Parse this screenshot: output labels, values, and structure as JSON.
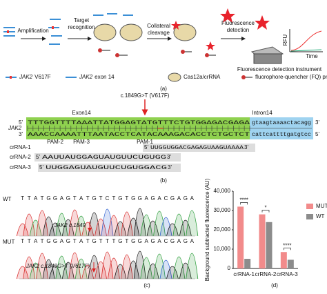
{
  "panel_a": {
    "steps": [
      [
        "Amplification"
      ],
      [
        "Target",
        "recognition"
      ],
      [
        "Collateral",
        "cleavage"
      ],
      [
        "Fluorescence",
        "detection"
      ]
    ],
    "instrument": "Fluorescence detection instrument",
    "rfu": "RFU",
    "time": "Time",
    "legend": [
      {
        "gene": "JAK2",
        "text": "V617F"
      },
      {
        "gene": "JAK2",
        "text": "exon 14"
      },
      {
        "text": "Cas12a/crRNA"
      },
      {
        "text": "fluorophore-quencher (FQ) probe"
      }
    ],
    "label": "(a)"
  },
  "panel_b": {
    "mutation": "c.1849G>T (V617F)",
    "exon": "Exon14",
    "intron": "Intron14",
    "gene": "JAK2",
    "top": {
      "start": "5'",
      "left": "TTTGGTTTTAAATTATGGAGTATG",
      "mut": "T",
      "right": "TTCTGTGGAGACGAGA",
      "intron": "gtaagtaaaactacagg",
      "end": "3'"
    },
    "bottom": {
      "start": "3'",
      "left": "AAACCAAAATTTAATACCTCATAC",
      "mut": "A",
      "right": "AAGACACCTCTGCTCT",
      "intron": "cattcattttgatgtcc",
      "end": "5'"
    },
    "pams": [
      "PAM-2",
      "PAM-3",
      "PAM-1"
    ],
    "crrnas": [
      {
        "name": "crRNA-1",
        "start": "5'",
        "left": "UUGGUGGACGAGAGUAAGUAAAA",
        "mut": "",
        "right": "",
        "end": "3'"
      },
      {
        "name": "crRNA-2",
        "start": "5'",
        "left": "AAUUAUGGAGUAUG",
        "mut": "U",
        "right": "UCUGUGG",
        "end": "3'"
      },
      {
        "name": "crRNA-3",
        "start": "5'",
        "left": "UUGGAGUAUG",
        "mut": "U",
        "right": "UCUGUGGACG",
        "end": "3'"
      }
    ],
    "label": "(b)"
  },
  "panel_c": {
    "wt": {
      "name": "WT",
      "annotation": "JAK2 c.1849",
      "sequence": [
        "T",
        "T",
        "A",
        "T",
        "G",
        "G",
        "A",
        "G",
        "T",
        "A",
        "T",
        "G",
        "T",
        "C",
        "T",
        "G",
        "T",
        "G",
        "G",
        "A",
        "G",
        "A",
        "C",
        "G",
        "A",
        "G",
        "A"
      ]
    },
    "mut": {
      "name": "MUT",
      "annotation": "JAK2 c.1849G>T (V617F)",
      "sequence": [
        "T",
        "T",
        "A",
        "T",
        "G",
        "G",
        "A",
        "G",
        "T",
        "A",
        "T",
        "G",
        "T",
        "T",
        "T",
        "G",
        "T",
        "G",
        "G",
        "A",
        "G",
        "A",
        "C",
        "G",
        "A",
        "G",
        "A"
      ]
    },
    "label": "(c)"
  },
  "chart_data": {
    "type": "bar",
    "y_label": "Background subtracted fluorescence (AU)",
    "categories": [
      "crRNA-1",
      "crRNA-2",
      "crRNA-3"
    ],
    "series": [
      {
        "name": "MUT",
        "color": "#f28b8b",
        "values": [
          32000,
          28000,
          8500
        ]
      },
      {
        "name": "WT",
        "color": "#8c8c8c",
        "values": [
          5000,
          24000,
          4500
        ]
      }
    ],
    "significance": [
      "****",
      "*",
      "****"
    ],
    "ylim": [
      0,
      40000
    ],
    "yticks": [
      0,
      {
        "value": 10000,
        "label": "10,000"
      },
      {
        "value": 20000,
        "label": "20,000"
      },
      {
        "value": 30000,
        "label": "30,000"
      },
      {
        "value": 40000,
        "label": "40,000"
      }
    ],
    "legend": "right",
    "label": "(d)"
  }
}
